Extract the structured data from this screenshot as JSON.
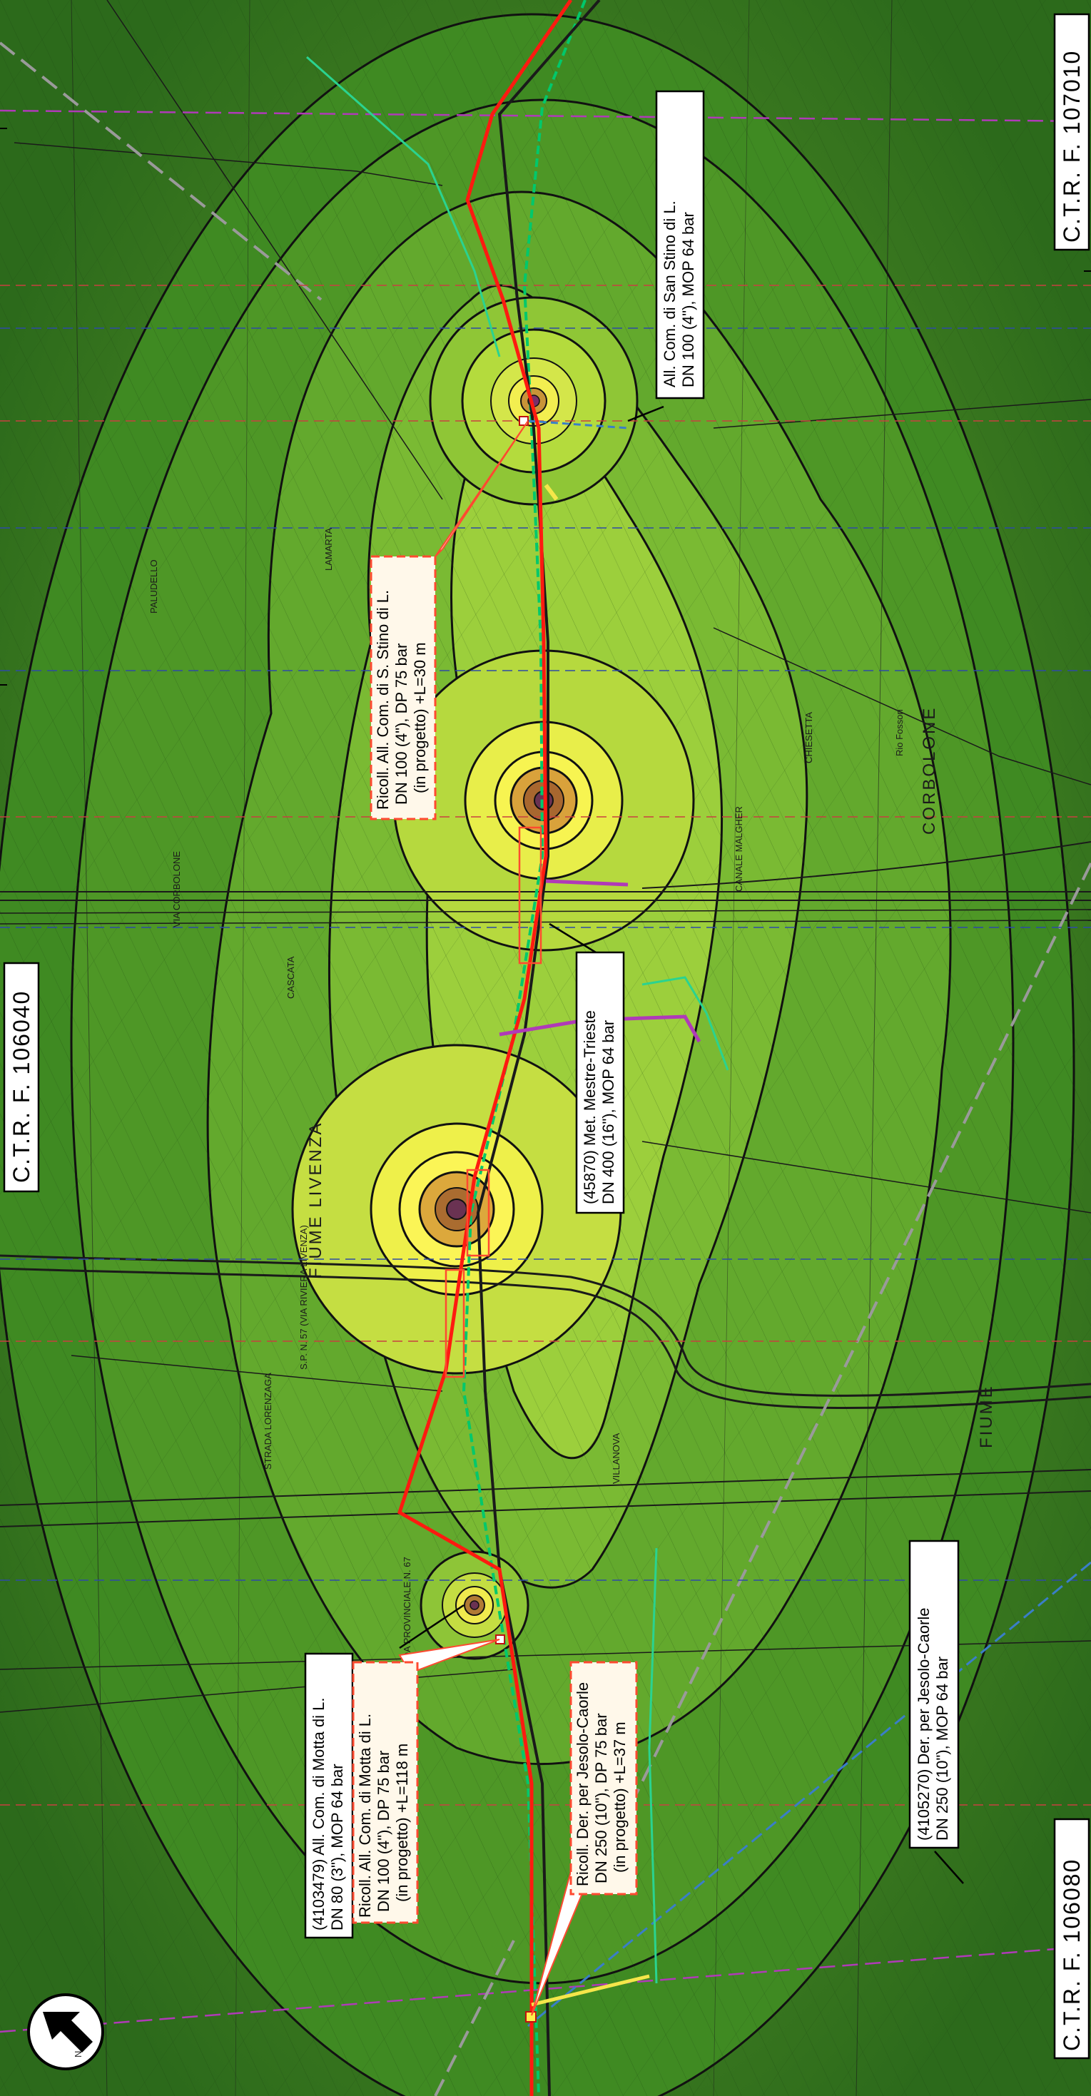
{
  "map": {
    "sheet_labels": {
      "top_right": "C.T.R.  F.  107010",
      "middle_left": "C.T.R.  F.  106040",
      "bottom_left": "C.T.R.  F.  106080"
    },
    "callouts": {
      "san_stino": [
        "All. Com. di San Stino di L.",
        "DN 100 (4\"), MOP 64 bar"
      ],
      "ricoll_stino": [
        "Ricoll. All. Com. di S. Stino di L.",
        "DN 100 (4\"), DP 75 bar",
        "(in progetto) +L=30 m"
      ],
      "mestre_trieste": [
        "(45870) Met. Mestre-Trieste",
        "DN 400 (16\"), MOP 64 bar"
      ],
      "motta": [
        "(4103479) All. Com. di Motta di L.",
        "DN 80 (3\"), MOP 64 bar"
      ],
      "ricoll_motta": [
        "Ricoll. All. Com. di Motta di L.",
        "DN 100 (4\"), DP 75 bar",
        "(in progetto) +L=118 m"
      ],
      "ricoll_jesolo": [
        "Ricoll. Der. per Jesolo-Caorle",
        "DN 250 (10\"), DP 75 bar",
        "(in progetto) +L=37 m"
      ],
      "jesolo": [
        "(4105270) Der. per Jesolo-Caorle",
        "DN 250 (10\"), MOP 64 bar"
      ]
    },
    "place_labels": {
      "fiume_livenza": "FIUME LIVENZA",
      "fiume_bottom": "FIUME",
      "canale_malgher": "CANALE MALGHER",
      "corbolone": "CORBOLONE",
      "rio_fosson": "Rio Fosson",
      "sp": "S.P. N. 57 (VIA RIVIERA LIVENZA)",
      "strada_lorenzaga": "STRADA LORENZAGA",
      "cascata": "CASCATA",
      "via_corbolone": "VIA CORBOLONE",
      "strada_prov": "STRADA PROVINCIALE N. 67",
      "chiesetta": "CHIESETTA",
      "villanova": "VILLANOVA",
      "paludello": "PALUDELLO",
      "lamarta": "LAMARTA"
    },
    "north_arrow": "N",
    "colors": {
      "pipeline_red": "#ff1a10",
      "pipeline_black": "#1a1a1a",
      "pipeline_green": "#00c86b",
      "magenta": "#b03ab8",
      "contour": "#111111"
    }
  }
}
